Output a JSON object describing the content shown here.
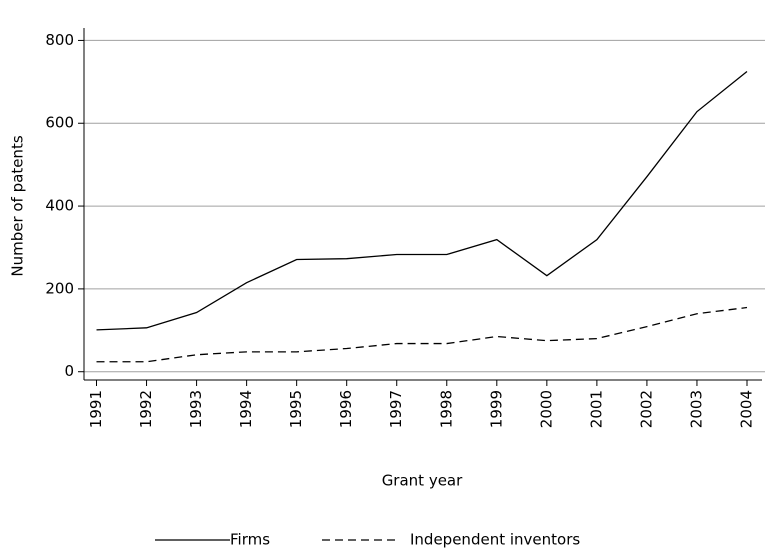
{
  "chart_data": {
    "type": "line",
    "x_label": "Grant year",
    "y_label": "Number of patents",
    "x": [
      1991,
      1992,
      1993,
      1994,
      1995,
      1996,
      1997,
      1998,
      1999,
      2000,
      2001,
      2002,
      2003,
      2004
    ],
    "series": [
      {
        "name": "Firms",
        "color": "#000000",
        "line_style": "solid",
        "values": [
          101,
          106,
          143,
          215,
          271,
          273,
          283,
          283,
          319,
          232,
          319,
          471,
          628,
          725
        ]
      },
      {
        "name": "Independent inventors",
        "color": "#000000",
        "line_style": "dashed",
        "values": [
          24,
          24,
          41,
          48,
          48,
          56,
          68,
          68,
          85,
          75,
          80,
          109,
          140,
          155
        ]
      }
    ],
    "xlim": [
      1990.75,
      2004.3
    ],
    "xticks": [
      1991,
      1992,
      1993,
      1994,
      1995,
      1996,
      1997,
      1998,
      1999,
      2000,
      2001,
      2002,
      2003,
      2004
    ],
    "ylim": [
      -20,
      830
    ],
    "yticks": [
      0,
      200,
      400,
      600,
      800
    ],
    "grid": true,
    "legend": "bottom"
  }
}
